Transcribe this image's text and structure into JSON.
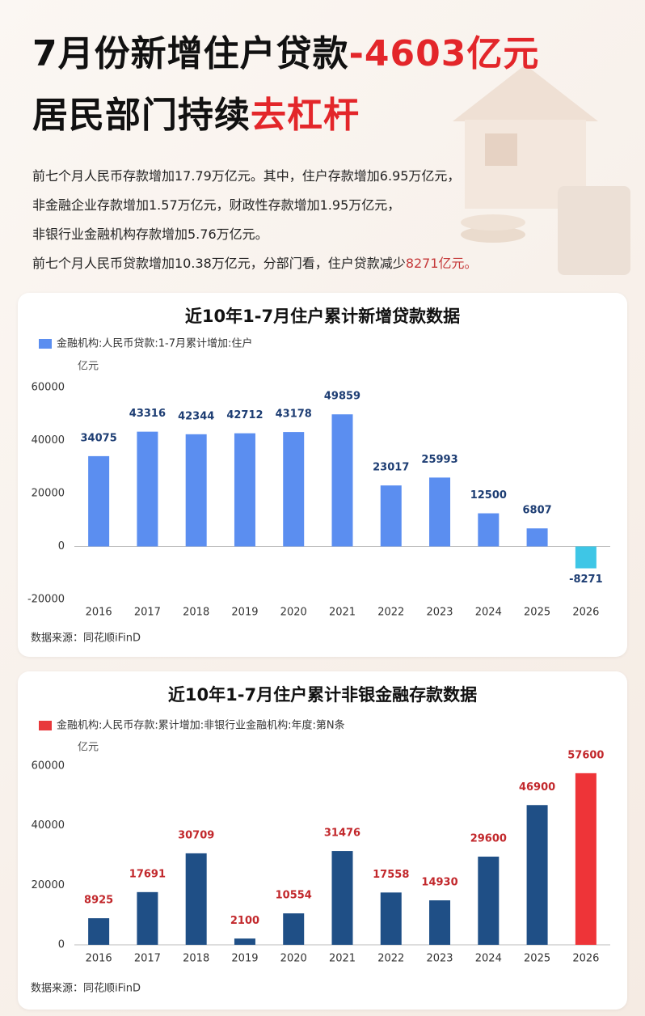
{
  "header": {
    "title_line1": "7月份新增住户贷款",
    "title_line1_highlight": "-4603亿元",
    "title_line2": "居民部门持续",
    "title_line2_highlight": "去杠杆",
    "paragraph": [
      "前七个月人民币存款增加17.79万亿元。其中，住户存款增加6.95万亿元，",
      "非金融企业存款增加1.57万亿元，财政性存款增加1.95万亿元，",
      "非银行业金融机构存款增加5.76万亿元。"
    ],
    "last_line": "前七个月人民币贷款增加10.38万亿元，分部门看，住户贷款减少",
    "last_line_highlight": "8271亿元。"
  },
  "chart_data": [
    {
      "type": "bar",
      "title": "近10年1-7月住户累计新增贷款数据",
      "y_label": "亿元",
      "source": "数据来源：同花顺iFinD",
      "categories": [
        "2016",
        "2017",
        "2018",
        "2019",
        "2020",
        "2021",
        "2022",
        "2023",
        "2024",
        "2025",
        "2026"
      ],
      "series": [
        {
          "name": "金融机构:人民币贷款:1-7月累计增加:住户",
          "color": "#5b8ef0",
          "colors": [
            "#5b8ef0",
            "#5b8ef0",
            "#5b8ef0",
            "#5b8ef0",
            "#5b8ef0",
            "#5b8ef0",
            "#5b8ef0",
            "#5b8ef0",
            "#5b8ef0",
            "#5b8ef0",
            "#3ec6e6"
          ],
          "label_color": "#1d3d73",
          "values": [
            34075,
            43316,
            42344,
            42712,
            43178,
            49859,
            23017,
            25993,
            12500,
            6807,
            -8271
          ]
        }
      ],
      "ylim": [
        -20000,
        60000
      ],
      "yticks": [
        -20000,
        0,
        20000,
        40000,
        60000
      ],
      "grid": false
    },
    {
      "type": "bar",
      "title": "近10年1-7月住户累计非银金融存款数据",
      "y_label": "亿元",
      "source": "数据来源：同花顺iFinD",
      "categories": [
        "2016",
        "2017",
        "2018",
        "2019",
        "2020",
        "2021",
        "2022",
        "2023",
        "2024",
        "2025",
        "2026"
      ],
      "series": [
        {
          "name": "金融机构:人民币存款:累计增加:非银行业金融机构:年度:第N条",
          "color": "#e8383b",
          "colors": [
            "#1f4f86",
            "#1f4f86",
            "#1f4f86",
            "#1f4f86",
            "#1f4f86",
            "#1f4f86",
            "#1f4f86",
            "#1f4f86",
            "#1f4f86",
            "#1f4f86",
            "#ee3438"
          ],
          "label_color": "#c2282c",
          "values": [
            8925,
            17691,
            30709,
            2100,
            10554,
            31476,
            17558,
            14930,
            29600,
            46900,
            57600
          ]
        }
      ],
      "ylim": [
        0,
        60000
      ],
      "yticks": [
        0,
        20000,
        40000,
        60000
      ],
      "grid": false
    }
  ]
}
